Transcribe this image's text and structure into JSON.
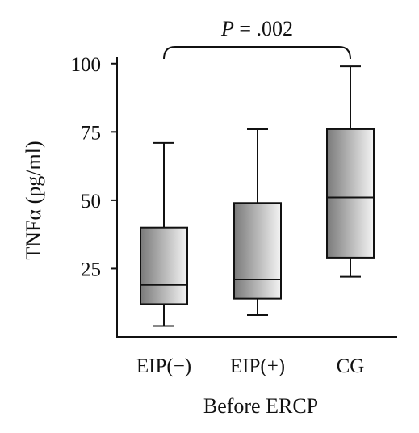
{
  "chart_data": {
    "type": "box",
    "categories": [
      "EIP(−)",
      "EIP(+)",
      "CG"
    ],
    "boxes": [
      {
        "category": "EIP(−)",
        "min": 4,
        "q1": 12,
        "median": 19,
        "q3": 40,
        "max": 71
      },
      {
        "category": "EIP(+)",
        "min": 8,
        "q1": 14,
        "median": 21,
        "q3": 49,
        "max": 76
      },
      {
        "category": "CG",
        "min": 22,
        "q1": 29,
        "median": 51,
        "q3": 76,
        "max": 99
      }
    ],
    "xlabel": "Before ERCP",
    "ylabel": "TNFα (pg/ml)",
    "ylim": [
      0,
      102
    ],
    "yticks": [
      25,
      50,
      75,
      100
    ],
    "annotation": {
      "p_label": "P",
      "p_value": " = .002",
      "from": "EIP(−)",
      "to": "CG"
    },
    "box_fill_gradient": [
      "#7a7a7a",
      "#f4f4f4"
    ],
    "grid": false,
    "legend": "none"
  }
}
